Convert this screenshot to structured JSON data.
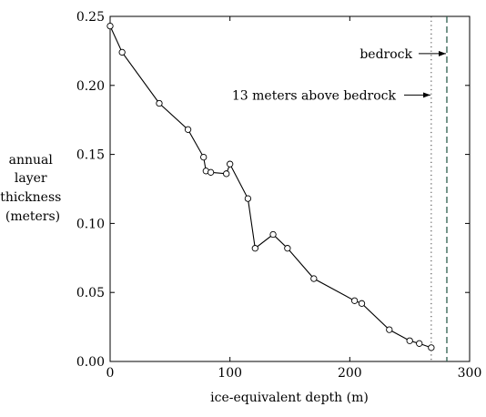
{
  "chart_data": {
    "type": "line",
    "xlabel": "ice-equivalent depth (m)",
    "ylabel": [
      "annual",
      "layer",
      "thickness",
      "(meters)"
    ],
    "xlim": [
      0,
      300
    ],
    "ylim": [
      0,
      0.25
    ],
    "x_ticks": [
      0,
      100,
      200,
      300
    ],
    "y_ticks": [
      0.0,
      0.05,
      0.1,
      0.15,
      0.2,
      0.25
    ],
    "x_tick_labels": [
      "0",
      "100",
      "200",
      "300"
    ],
    "y_tick_labels": [
      "0.00",
      "0.05",
      "0.10",
      "0.15",
      "0.20",
      "0.25"
    ],
    "series": [
      {
        "marker": "circle",
        "x": [
          0,
          10,
          41,
          65,
          78,
          80,
          84,
          97,
          100,
          115,
          121,
          136,
          148,
          170,
          204,
          210,
          233,
          250,
          258,
          268
        ],
        "y": [
          0.243,
          0.224,
          0.187,
          0.168,
          0.148,
          0.138,
          0.137,
          0.136,
          0.143,
          0.118,
          0.082,
          0.092,
          0.082,
          0.06,
          0.044,
          0.042,
          0.023,
          0.015,
          0.013,
          0.01
        ]
      }
    ],
    "annotations": [
      {
        "label": "13 meters above bedrock",
        "x": 268,
        "line_style": "dotted",
        "y": 0.193
      },
      {
        "label": "bedrock",
        "x": 281,
        "line_style": "dashed",
        "y": 0.223
      }
    ],
    "grid": false
  }
}
